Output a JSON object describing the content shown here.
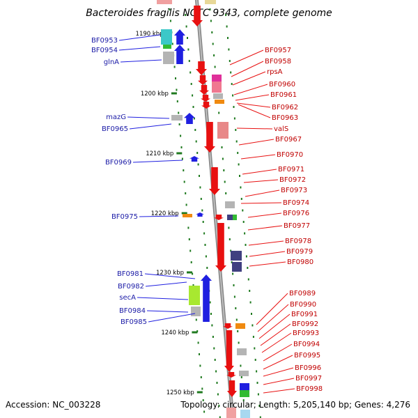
{
  "title": "Bacteroides fragilis NCTC 9343, complete genome",
  "accession": "Accession: NC_003228",
  "summary": "Topology: circular; Length: 5,205,140 bp; Genes: 4,276",
  "ticks": [
    {
      "label": "1190 kbp",
      "pos": 1190
    },
    {
      "label": "1200 kbp",
      "pos": 1200
    },
    {
      "label": "1210 kbp",
      "pos": 1210
    },
    {
      "label": "1220 kbp",
      "pos": 1220
    },
    {
      "label": "1230 kbp",
      "pos": 1230
    },
    {
      "label": "1240 kbp",
      "pos": 1240
    },
    {
      "label": "1250 kbp",
      "pos": 1250
    }
  ],
  "left_labels": [
    "BF0953",
    "BF0954",
    "glnA",
    "mazG",
    "BF0965",
    "BF0969",
    "BF0975",
    "BF0981",
    "BF0982",
    "secA",
    "BF0984",
    "BF0985"
  ],
  "right_labels": [
    "BF0957",
    "BF0958",
    "rpsA",
    "BF0960",
    "BF0961",
    "BF0962",
    "BF0963",
    "valS",
    "BF0967",
    "BF0970",
    "BF0971",
    "BF0972",
    "BF0973",
    "BF0974",
    "BF0976",
    "BF0977",
    "BF0978",
    "BF0979",
    "BF0980",
    "BF0989",
    "BF0990",
    "BF0991",
    "BF0992",
    "BF0993",
    "BF0994",
    "BF0995",
    "BF0996",
    "BF0997",
    "BF0998"
  ],
  "colors": {
    "backbone": "#888888",
    "forward_gene": "#1f1fe0",
    "reverse_gene": "#e81010",
    "tick": "#1f7a1f",
    "left_label": "#1a1aa6",
    "right_label": "#c00000",
    "cog_teal": "#3cc8c8",
    "cog_grey": "#b4b4b4",
    "cog_green": "#33bb33",
    "cog_orange": "#f08a10",
    "cog_pink": "#f07890",
    "cog_magenta": "#e0309a",
    "cog_lime": "#a8e830",
    "cog_navy": "#404080"
  }
}
